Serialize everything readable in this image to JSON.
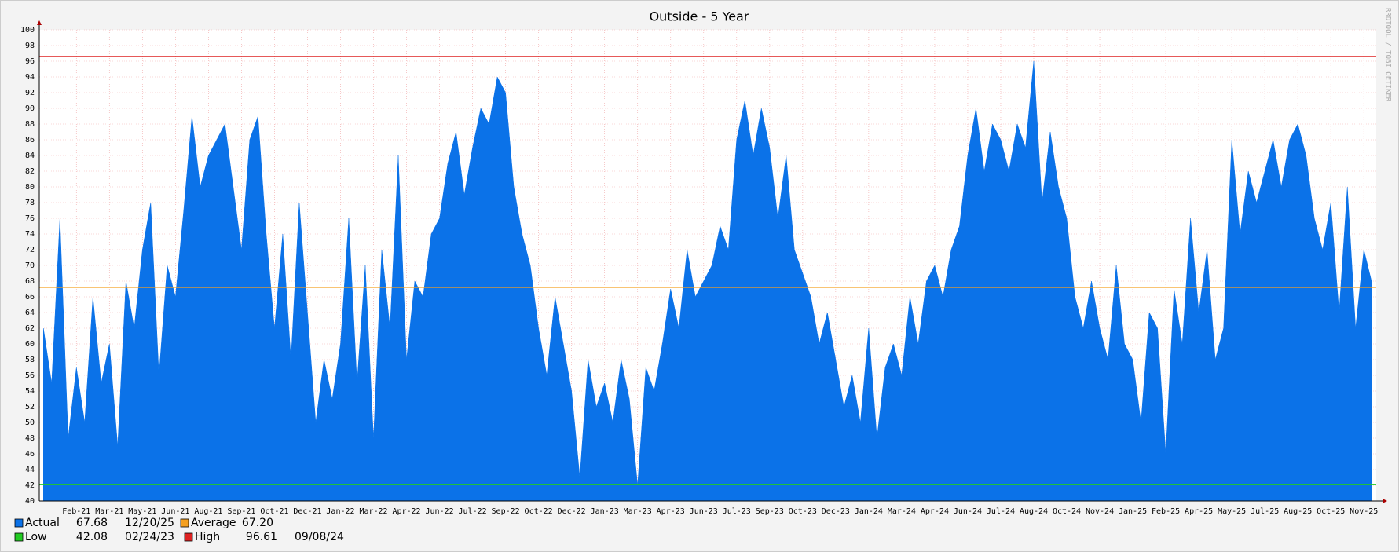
{
  "chart_data": {
    "type": "area",
    "title": "Outside - 5 Year",
    "watermark": "RRDTOOL / TOBI OETIKER",
    "categories": [
      null,
      null,
      null,
      null,
      "Feb-21",
      null,
      null,
      null,
      "Mar-21",
      null,
      null,
      null,
      "May-21",
      null,
      null,
      null,
      "Jun-21",
      null,
      null,
      null,
      "Aug-21",
      null,
      null,
      null,
      "Sep-21",
      null,
      null,
      null,
      "Oct-21",
      null,
      null,
      null,
      "Dec-21",
      null,
      null,
      null,
      "Jan-22",
      null,
      null,
      null,
      "Mar-22",
      null,
      null,
      null,
      "Apr-22",
      null,
      null,
      null,
      "Jun-22",
      null,
      null,
      null,
      "Jul-22",
      null,
      null,
      null,
      "Sep-22",
      null,
      null,
      null,
      "Oct-22",
      null,
      null,
      null,
      "Dec-22",
      null,
      null,
      null,
      "Jan-23",
      null,
      null,
      null,
      "Mar-23",
      null,
      null,
      null,
      "Apr-23",
      null,
      null,
      null,
      "Jun-23",
      null,
      null,
      null,
      "Jul-23",
      null,
      null,
      null,
      "Sep-23",
      null,
      null,
      null,
      "Oct-23",
      null,
      null,
      null,
      "Dec-23",
      null,
      null,
      null,
      "Jan-24",
      null,
      null,
      null,
      "Mar-24",
      null,
      null,
      null,
      "Apr-24",
      null,
      null,
      null,
      "Jun-24",
      null,
      null,
      null,
      "Jul-24",
      null,
      null,
      null,
      "Aug-24",
      null,
      null,
      null,
      "Oct-24",
      null,
      null,
      null,
      "Nov-24",
      null,
      null,
      null,
      "Jan-25",
      null,
      null,
      null,
      "Feb-25",
      null,
      null,
      null,
      "Apr-25",
      null,
      null,
      null,
      "May-25",
      null,
      null,
      null,
      "Jul-25",
      null,
      null,
      null,
      "Aug-25",
      null,
      null,
      null,
      "Oct-25",
      null,
      null,
      null,
      "Nov-25",
      null
    ],
    "series": [
      {
        "name": "Actual",
        "color": "#0b72e8",
        "current": 67.68,
        "current_label": "67.68",
        "date": "12/20/25",
        "values": [
          62,
          55,
          76,
          48,
          57,
          50,
          66,
          55,
          60,
          47,
          68,
          62,
          72,
          78,
          56,
          70,
          66,
          77,
          89,
          80,
          84,
          86,
          88,
          80,
          72,
          86,
          89,
          74,
          62,
          74,
          58,
          78,
          64,
          50,
          58,
          53,
          60,
          76,
          55,
          70,
          48,
          72,
          62,
          84,
          58,
          68,
          66,
          74,
          76,
          83,
          87,
          79,
          85,
          90,
          88,
          94,
          92,
          80,
          74,
          70,
          62,
          56,
          66,
          60,
          54,
          43,
          58,
          52,
          55,
          50,
          58,
          53,
          42,
          57,
          54,
          60,
          67,
          62,
          72,
          66,
          68,
          70,
          75,
          72,
          86,
          91,
          84,
          90,
          85,
          76,
          84,
          72,
          69,
          66,
          60,
          64,
          58,
          52,
          56,
          50,
          62,
          48,
          57,
          60,
          56,
          66,
          60,
          68,
          70,
          66,
          72,
          75,
          84,
          90,
          82,
          88,
          86,
          82,
          88,
          85,
          96,
          78,
          87,
          80,
          76,
          66,
          62,
          68,
          62,
          58,
          70,
          60,
          58,
          50,
          64,
          62,
          46,
          67,
          60,
          76,
          64,
          72,
          58,
          62,
          86,
          74,
          82,
          78,
          82,
          86,
          80,
          86,
          88,
          84,
          76,
          72,
          78,
          64,
          80,
          62,
          72,
          67.68
        ]
      }
    ],
    "reference_lines": [
      {
        "name": "Average",
        "color": "#f5a020",
        "value": 67.2,
        "value_label": "67.20"
      },
      {
        "name": "Low",
        "color": "#22cc22",
        "value": 42.08,
        "value_label": "42.08",
        "date": "02/24/23"
      },
      {
        "name": "High",
        "color": "#dd2222",
        "value": 96.61,
        "value_label": "96.61",
        "date": "09/08/24"
      }
    ],
    "ylim": [
      40,
      100
    ],
    "yticks": [
      40,
      42,
      44,
      46,
      48,
      50,
      52,
      54,
      56,
      58,
      60,
      62,
      64,
      66,
      68,
      70,
      72,
      74,
      76,
      78,
      80,
      82,
      84,
      86,
      88,
      90,
      92,
      94,
      96,
      98,
      100
    ],
    "grid": true
  }
}
